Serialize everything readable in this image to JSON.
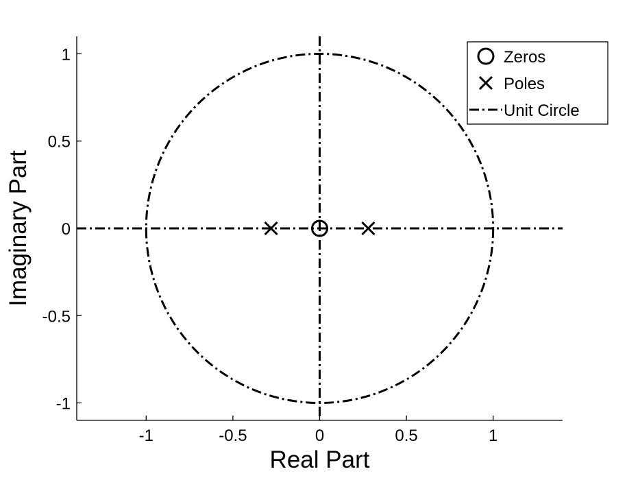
{
  "chart_data": {
    "type": "scatter",
    "title": "",
    "xlabel": "Real Part",
    "ylabel": "Imaginary Part",
    "xlim": [
      -1.4,
      1.4
    ],
    "ylim": [
      -1.1,
      1.1
    ],
    "xticks": [
      -1,
      -0.5,
      0,
      0.5,
      1
    ],
    "yticks": [
      -1,
      -0.5,
      0,
      0.5,
      1
    ],
    "xtick_labels": [
      "-1",
      "-0.5",
      "0",
      "0.5",
      "1"
    ],
    "ytick_labels": [
      "-1",
      "-0.5",
      "0",
      "0.5",
      "1"
    ],
    "grid": false,
    "legend_position": "top-right",
    "series": [
      {
        "name": "Zeros",
        "marker": "circle",
        "points": [
          {
            "x": 0,
            "y": 0
          }
        ]
      },
      {
        "name": "Poles",
        "marker": "x",
        "points": [
          {
            "x": -0.28,
            "y": 0
          },
          {
            "x": 0.28,
            "y": 0
          }
        ]
      },
      {
        "name": "Unit Circle",
        "line_style": "dash-dot",
        "shape": "circle",
        "center": [
          0,
          0
        ],
        "radius": 1
      }
    ],
    "reference_lines": [
      {
        "orientation": "horizontal",
        "value": 0,
        "line_style": "dash-dot"
      },
      {
        "orientation": "vertical",
        "value": 0,
        "line_style": "dash-dot"
      }
    ],
    "colors": {
      "foreground": "#000000",
      "background": "#ffffff"
    }
  }
}
